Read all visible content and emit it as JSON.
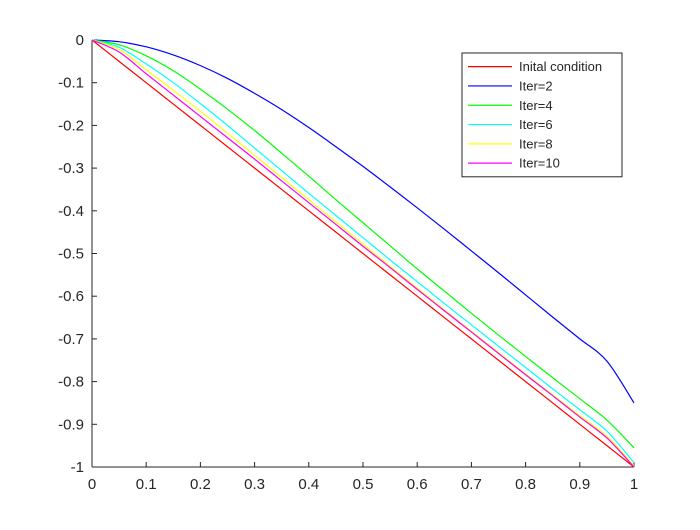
{
  "chart_data": {
    "type": "line",
    "xlim": [
      0,
      1
    ],
    "ylim": [
      -1,
      0
    ],
    "xticks": [
      "0",
      "0.1",
      "0.2",
      "0.3",
      "0.4",
      "0.5",
      "0.6",
      "0.7",
      "0.8",
      "0.9",
      "1"
    ],
    "xtick_values": [
      0,
      0.1,
      0.2,
      0.3,
      0.4,
      0.5,
      0.6,
      0.7,
      0.8,
      0.9,
      1
    ],
    "yticks": [
      "0",
      "-0.1",
      "-0.2",
      "-0.3",
      "-0.4",
      "-0.5",
      "-0.6",
      "-0.7",
      "-0.8",
      "-0.9",
      "-1"
    ],
    "ytick_values": [
      0,
      -0.1,
      -0.2,
      -0.3,
      -0.4,
      -0.5,
      -0.6,
      -0.7,
      -0.8,
      -0.9,
      -1
    ],
    "grid": false,
    "box": false,
    "legend_position": "top-right",
    "x": [
      0,
      0.05,
      0.1,
      0.15,
      0.2,
      0.25,
      0.3,
      0.35,
      0.4,
      0.45,
      0.5,
      0.55,
      0.6,
      0.65,
      0.7,
      0.75,
      0.8,
      0.85,
      0.9,
      0.95,
      1
    ],
    "series": [
      {
        "name": "Inital condition",
        "color": "#ff0000",
        "values": [
          0,
          -0.05,
          -0.1,
          -0.15,
          -0.2,
          -0.25,
          -0.3,
          -0.35,
          -0.4,
          -0.45,
          -0.5,
          -0.55,
          -0.6,
          -0.65,
          -0.7,
          -0.75,
          -0.8,
          -0.85,
          -0.9,
          -0.95,
          -1
        ]
      },
      {
        "name": "Iter=2",
        "color": "#0000ff",
        "values": [
          0,
          -0.004,
          -0.016,
          -0.035,
          -0.06,
          -0.09,
          -0.125,
          -0.163,
          -0.205,
          -0.25,
          -0.296,
          -0.344,
          -0.393,
          -0.443,
          -0.494,
          -0.545,
          -0.597,
          -0.649,
          -0.7,
          -0.752,
          -0.85
        ]
      },
      {
        "name": "Iter=4",
        "color": "#00ff00",
        "values": [
          0,
          -0.011,
          -0.037,
          -0.072,
          -0.115,
          -0.162,
          -0.212,
          -0.265,
          -0.319,
          -0.374,
          -0.428,
          -0.482,
          -0.536,
          -0.588,
          -0.64,
          -0.691,
          -0.741,
          -0.791,
          -0.84,
          -0.89,
          -0.955
        ]
      },
      {
        "name": "Iter=6",
        "color": "#00ffff",
        "values": [
          0,
          -0.017,
          -0.056,
          -0.1,
          -0.149,
          -0.2,
          -0.253,
          -0.306,
          -0.359,
          -0.411,
          -0.463,
          -0.515,
          -0.566,
          -0.617,
          -0.667,
          -0.717,
          -0.767,
          -0.817,
          -0.866,
          -0.916,
          -0.99
        ]
      },
      {
        "name": "Iter=8",
        "color": "#ffff00",
        "values": [
          0,
          -0.022,
          -0.07,
          -0.118,
          -0.167,
          -0.218,
          -0.27,
          -0.322,
          -0.374,
          -0.426,
          -0.478,
          -0.53,
          -0.581,
          -0.632,
          -0.682,
          -0.732,
          -0.782,
          -0.831,
          -0.88,
          -0.928,
          -0.997
        ]
      },
      {
        "name": "Iter=10",
        "color": "#ff00ff",
        "values": [
          0,
          -0.028,
          -0.079,
          -0.129,
          -0.179,
          -0.229,
          -0.279,
          -0.33,
          -0.381,
          -0.432,
          -0.483,
          -0.533,
          -0.584,
          -0.634,
          -0.684,
          -0.734,
          -0.784,
          -0.833,
          -0.883,
          -0.932,
          -1
        ]
      }
    ]
  }
}
